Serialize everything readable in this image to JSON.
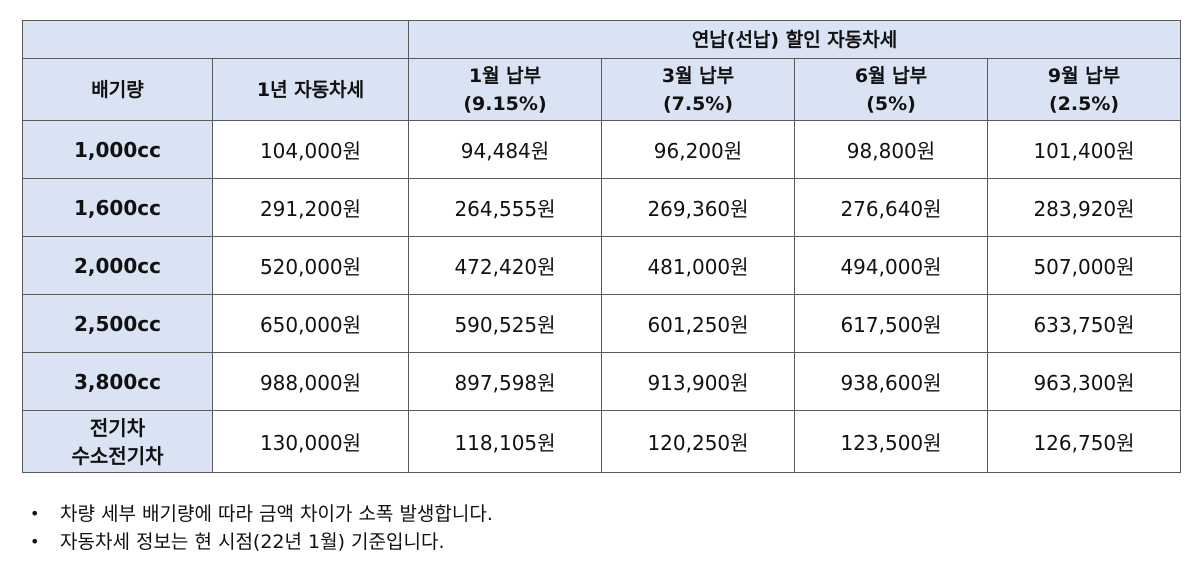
{
  "header": {
    "group_label": "연납(선납) 할인 자동차세",
    "col_displacement": "배기량",
    "col_annual": "1년 자동차세",
    "months": [
      {
        "label": "1월 납부",
        "rate": "(9.15%)"
      },
      {
        "label": "3월 납부",
        "rate": "(7.5%)"
      },
      {
        "label": "6월 납부",
        "rate": "(5%)"
      },
      {
        "label": "9월 납부",
        "rate": "(2.5%)"
      }
    ]
  },
  "rows": [
    {
      "displacement": "1,000cc",
      "annual": "104,000원",
      "values": [
        "94,484원",
        "96,200원",
        "98,800원",
        "101,400원"
      ]
    },
    {
      "displacement": "1,600cc",
      "annual": "291,200원",
      "values": [
        "264,555원",
        "269,360원",
        "276,640원",
        "283,920원"
      ]
    },
    {
      "displacement": "2,000cc",
      "annual": "520,000원",
      "values": [
        "472,420원",
        "481,000원",
        "494,000원",
        "507,000원"
      ]
    },
    {
      "displacement": "2,500cc",
      "annual": "650,000원",
      "values": [
        "590,525원",
        "601,250원",
        "617,500원",
        "633,750원"
      ]
    },
    {
      "displacement": "3,800cc",
      "annual": "988,000원",
      "values": [
        "897,598원",
        "913,900원",
        "938,600원",
        "963,300원"
      ]
    }
  ],
  "last_row": {
    "line1": "전기차",
    "line2": "수소전기차",
    "annual": "130,000원",
    "values": [
      "118,105원",
      "120,250원",
      "123,500원",
      "126,750원"
    ]
  },
  "notes": [
    "차량 세부 배기량에 따라 금액 차이가 소폭 발생합니다.",
    "자동차세 정보는 현 시점(22년 1월) 기준입니다."
  ],
  "colors": {
    "header_bg": "#dae3f3",
    "border": "#5b5b5b"
  }
}
